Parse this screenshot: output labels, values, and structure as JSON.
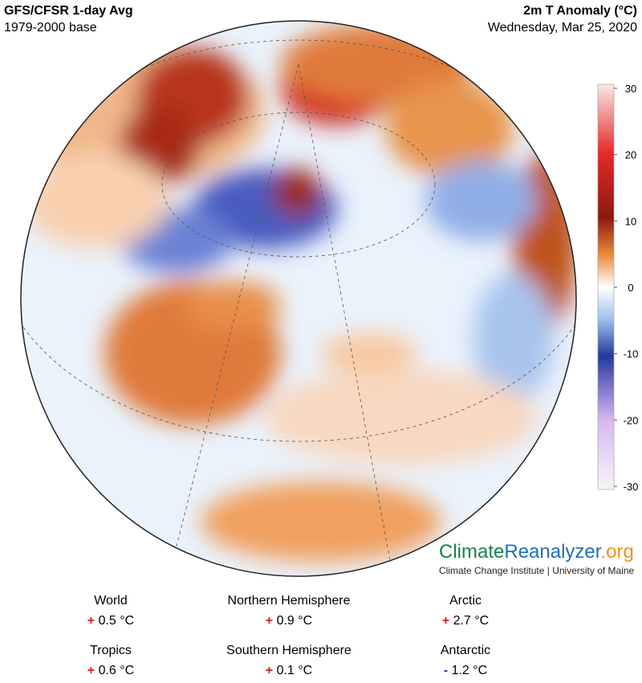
{
  "header": {
    "title": "GFS/CFSR 1-day Avg",
    "subtitle": "1979-2000 base",
    "variable": "2m T Anomaly (°C)",
    "date": "Wednesday, Mar 25, 2020"
  },
  "colorbar": {
    "lim": [
      -30,
      30
    ],
    "ticks": [
      30,
      20,
      10,
      0,
      -10,
      -20,
      -30
    ]
  },
  "branding": {
    "name_parts": [
      "Climate",
      "Reanalyzer",
      ".org"
    ],
    "tagline": "Climate Change Institute | University of Maine"
  },
  "stats": [
    {
      "label": "World",
      "sign": "+",
      "value": "0.5 °C"
    },
    {
      "label": "Northern Hemisphere",
      "sign": "+",
      "value": "0.9 °C"
    },
    {
      "label": "Arctic",
      "sign": "+",
      "value": "2.7 °C"
    },
    {
      "label": "Tropics",
      "sign": "+",
      "value": "0.6 °C"
    },
    {
      "label": "Southern Hemisphere",
      "sign": "+",
      "value": "0.1 °C"
    },
    {
      "label": "Antarctic",
      "sign": "-",
      "value": "1.2 °C"
    }
  ]
}
